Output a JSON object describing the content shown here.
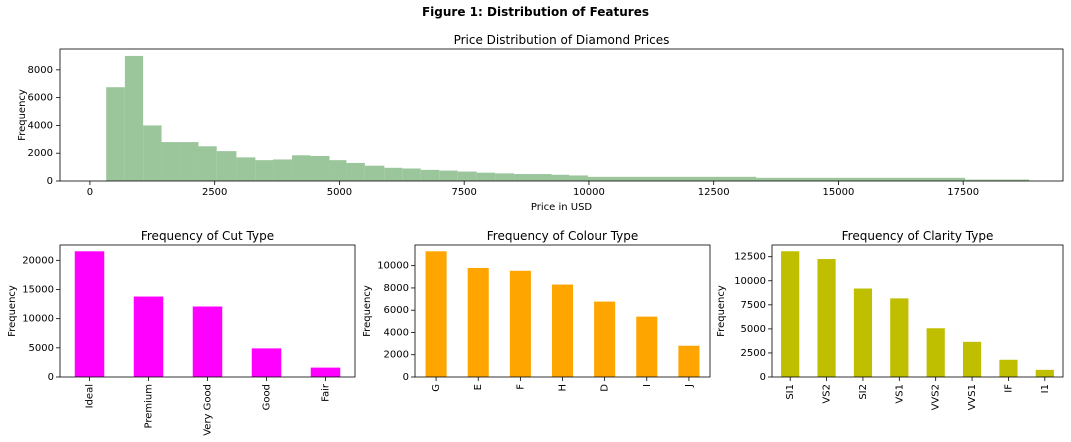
{
  "figure": {
    "title": "Figure 1: Distribution of Features"
  },
  "chart_data": [
    {
      "type": "bar",
      "subtype": "histogram",
      "title": "Price Distribution of Diamond Prices",
      "xlabel": "Price in USD",
      "ylabel": "Frequency",
      "xlim": [
        -600,
        19500
      ],
      "ylim": [
        0,
        9500
      ],
      "xticks": [
        0,
        2500,
        5000,
        7500,
        10000,
        12500,
        15000,
        17500
      ],
      "yticks": [
        0,
        2000,
        4000,
        6000,
        8000
      ],
      "color": "#9bc59b",
      "bins": [
        [
          326,
          700,
          6750
        ],
        [
          700,
          1066,
          9000
        ],
        [
          1066,
          1435,
          4000
        ],
        [
          1435,
          1804,
          2800
        ],
        [
          1804,
          2175,
          2800
        ],
        [
          2175,
          2540,
          2500
        ],
        [
          2540,
          2935,
          2150
        ],
        [
          2935,
          3315,
          1700
        ],
        [
          3315,
          3670,
          1500
        ],
        [
          3670,
          4050,
          1550
        ],
        [
          4050,
          4420,
          1850
        ],
        [
          4420,
          4800,
          1800
        ],
        [
          4800,
          5140,
          1500
        ],
        [
          5140,
          5510,
          1300
        ],
        [
          5510,
          5900,
          1100
        ],
        [
          5900,
          6260,
          950
        ],
        [
          6260,
          6630,
          900
        ],
        [
          6630,
          7000,
          800
        ],
        [
          7000,
          7370,
          750
        ],
        [
          7370,
          7750,
          680
        ],
        [
          7750,
          8120,
          600
        ],
        [
          8120,
          8500,
          550
        ],
        [
          8500,
          8850,
          500
        ],
        [
          8850,
          9250,
          500
        ],
        [
          9250,
          9600,
          450
        ],
        [
          9600,
          9980,
          400
        ],
        [
          9980,
          13350,
          300
        ],
        [
          13350,
          17540,
          230
        ],
        [
          17540,
          18823,
          100
        ]
      ]
    },
    {
      "type": "bar",
      "title": "Frequency of Cut Type",
      "ylabel": "Frequency",
      "color": "#ff00ff",
      "categories": [
        "Ideal",
        "Premium",
        "Very Good",
        "Good",
        "Fair"
      ],
      "values": [
        21551,
        13791,
        12082,
        4906,
        1610
      ],
      "ylim": [
        0,
        22629
      ],
      "yticks": [
        0,
        5000,
        10000,
        15000,
        20000
      ]
    },
    {
      "type": "bar",
      "title": "Frequency of Colour Type",
      "ylabel": "Frequency",
      "color": "#ffa500",
      "categories": [
        "G",
        "E",
        "F",
        "H",
        "D",
        "I",
        "J"
      ],
      "values": [
        11292,
        9797,
        9542,
        8304,
        6775,
        5422,
        2808
      ],
      "ylim": [
        0,
        11857
      ],
      "yticks": [
        0,
        2000,
        4000,
        6000,
        8000,
        10000
      ]
    },
    {
      "type": "bar",
      "title": "Frequency of Clarity Type",
      "ylabel": "Frequency",
      "color": "#bfbf00",
      "categories": [
        "SI1",
        "VS2",
        "SI2",
        "VS1",
        "VVS2",
        "VVS1",
        "IF",
        "I1"
      ],
      "values": [
        13065,
        12258,
        9194,
        8171,
        5066,
        3655,
        1790,
        741
      ],
      "ylim": [
        0,
        13718
      ],
      "yticks": [
        0,
        2500,
        5000,
        7500,
        10000,
        12500
      ]
    }
  ]
}
